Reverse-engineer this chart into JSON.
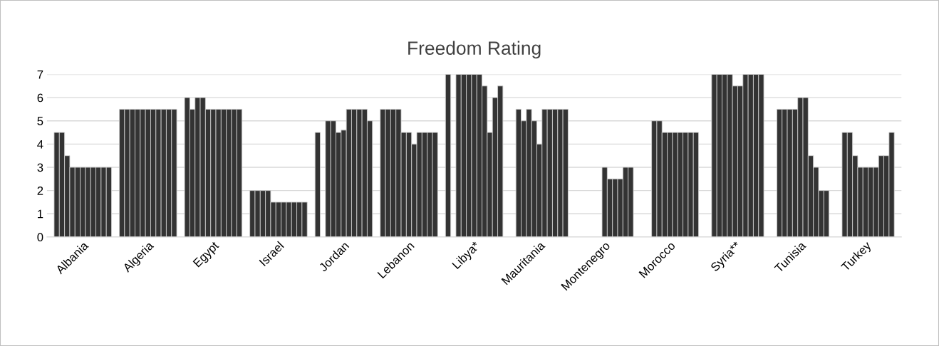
{
  "chart_data": {
    "type": "bar",
    "title": "Freedom Rating",
    "categories": [
      "Albania",
      "Algeria",
      "Egypt",
      "Israel",
      "Jordan",
      "Lebanon",
      "Libya*",
      "Mauritania",
      "Montenegro",
      "Morocco",
      "Syria**",
      "Tunisia",
      "Turkey"
    ],
    "series": [
      {
        "color": "#333333",
        "values": [
          4.5,
          5.5,
          6,
          2,
          4.5,
          5.5,
          7,
          null,
          null,
          null,
          null,
          null,
          null
        ]
      },
      {
        "color": "#333333",
        "values": [
          4.5,
          5.5,
          5.5,
          2,
          null,
          5.5,
          null,
          5.5,
          null,
          null,
          7,
          5.5,
          4.5
        ]
      },
      {
        "color": "#333333",
        "values": [
          3.5,
          5.5,
          6,
          2,
          5,
          5.5,
          7,
          5,
          null,
          5,
          7,
          5.5,
          4.5
        ]
      },
      {
        "color": "#333333",
        "values": [
          3,
          5.5,
          6,
          2,
          5,
          5.5,
          7,
          5.5,
          null,
          5,
          7,
          5.5,
          3.5
        ]
      },
      {
        "color": "#333333",
        "values": [
          3,
          5.5,
          5.5,
          1.5,
          4.5,
          4.5,
          7,
          5,
          null,
          4.5,
          7,
          5.5,
          3
        ]
      },
      {
        "color": "#333333",
        "values": [
          3,
          5.5,
          5.5,
          1.5,
          4.6,
          4.5,
          7,
          4,
          3,
          4.5,
          6.5,
          6,
          3
        ]
      },
      {
        "color": "#333333",
        "values": [
          3,
          5.5,
          5.5,
          1.5,
          5.5,
          4,
          7,
          5.5,
          2.5,
          4.5,
          6.5,
          6,
          3
        ]
      },
      {
        "color": "#333333",
        "values": [
          3,
          5.5,
          5.5,
          1.5,
          5.5,
          4.5,
          6.5,
          5.5,
          2.5,
          4.5,
          7,
          3.5,
          3
        ]
      },
      {
        "color": "#333333",
        "values": [
          3,
          5.5,
          5.5,
          1.5,
          5.5,
          4.5,
          4.5,
          5.5,
          2.5,
          4.5,
          7,
          3,
          3.5
        ]
      },
      {
        "color": "#333333",
        "values": [
          3,
          5.5,
          5.5,
          1.5,
          5.5,
          4.5,
          6,
          5.5,
          3,
          4.5,
          7,
          2,
          3.5
        ]
      },
      {
        "color": "#333333",
        "values": [
          3,
          5.5,
          5.5,
          1.5,
          5,
          4.5,
          6.5,
          5.5,
          3,
          4.5,
          7,
          2,
          4.5
        ]
      }
    ],
    "ylim": [
      0,
      7
    ],
    "yticks": [
      0,
      1,
      2,
      3,
      4,
      5,
      6,
      7
    ],
    "grid": "y",
    "legend": false
  }
}
